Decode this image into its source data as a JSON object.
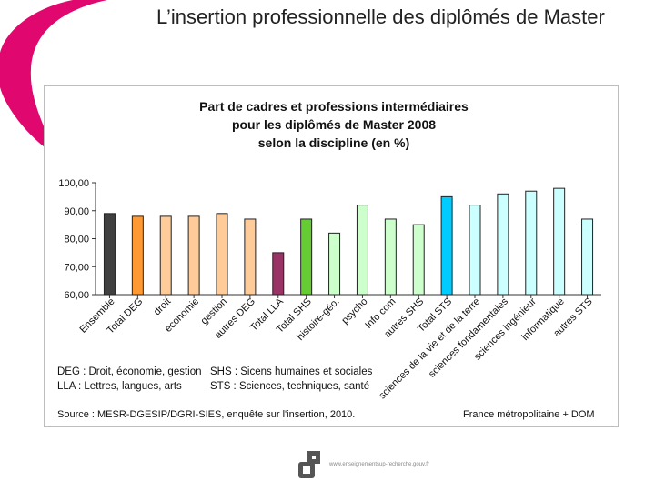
{
  "slide": {
    "title": "L’insertion professionnelle des diplômés de Master",
    "site_url": "www.enseignementsup-recherche.gouv.fr",
    "brand_color": "#e0076e"
  },
  "chart_data": {
    "type": "bar",
    "title_lines": [
      "Part de cadres et professions intermédiaires",
      "pour les diplômés de Master 2008",
      "selon la discipline (en %)"
    ],
    "categories": [
      "Ensemble",
      "Total DEG",
      "droit",
      "économie",
      "gestion",
      "autres DEG",
      "Total LLA",
      "Total SHS",
      "histoire-géo.",
      "psycho",
      "Info com",
      "autres SHS",
      "Total STS",
      "sciences de la vie et de la terre",
      "sciences fondamentales",
      "sciences ingénieur",
      "informatique",
      "autres STS"
    ],
    "values": [
      89,
      88,
      88,
      88,
      89,
      87,
      75,
      87,
      82,
      92,
      87,
      85,
      95,
      92,
      96,
      97,
      98,
      87
    ],
    "colors": [
      "#404040",
      "#ff9933",
      "#ffcc99",
      "#ffcc99",
      "#ffcc99",
      "#ffcc99",
      "#993366",
      "#66cc33",
      "#ccffcc",
      "#ccffcc",
      "#ccffcc",
      "#ccffcc",
      "#00ccff",
      "#ccffff",
      "#ccffff",
      "#ccffff",
      "#ccffff",
      "#ccffff"
    ],
    "ylim": [
      60,
      100
    ],
    "yticks": [
      "60,00",
      "70,00",
      "80,00",
      "90,00",
      "100,00"
    ],
    "legend": {
      "deg": "DEG : Droit, économie, gestion",
      "lla": "LLA : Lettres, langues, arts",
      "shs": "SHS : Sicens humaines et sociales",
      "sts": "STS : Sciences, techniques, santé"
    },
    "source": "Source : MESR-DGESIP/DGRI-SIES, enquête sur l'insertion, 2010.",
    "scope": "France métropolitaine + DOM"
  }
}
